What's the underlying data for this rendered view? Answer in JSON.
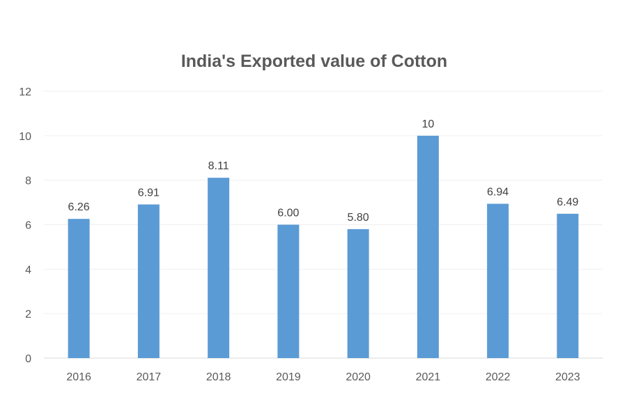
{
  "chart_data": {
    "type": "bar",
    "title": "India's Exported value of Cotton",
    "xlabel": "",
    "ylabel": "",
    "categories": [
      "2016",
      "2017",
      "2018",
      "2019",
      "2020",
      "2021",
      "2022",
      "2023"
    ],
    "values": [
      6.26,
      6.91,
      8.11,
      6.0,
      5.8,
      10,
      6.94,
      6.49
    ],
    "data_labels": [
      "6.26",
      "6.91",
      "8.11",
      "6.00",
      "5.80",
      "10",
      "6.94",
      "6.49"
    ],
    "ylim": [
      0,
      12
    ],
    "yticks": [
      0,
      2,
      4,
      6,
      8,
      10,
      12
    ],
    "grid": true,
    "legend": "none",
    "colors": {
      "bar": "#5b9bd5"
    }
  }
}
